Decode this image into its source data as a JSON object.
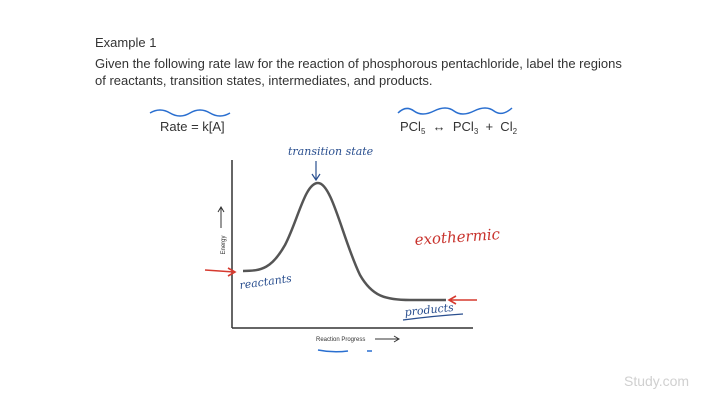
{
  "example": {
    "title": "Example 1",
    "prompt_lines": [
      "Given the following rate law for the reaction of phosphorous pentachloride, label the regions",
      "of reactants, transition states, intermediates, and products."
    ]
  },
  "rate_law": "Rate = k[A]",
  "reaction": {
    "parts": [
      "PCl",
      "5",
      "  ↔  PCl",
      "3",
      "  +  Cl",
      "2"
    ]
  },
  "diagram": {
    "y_axis_label": "Energy",
    "x_axis_label": "Reaction Progress",
    "annotations": {
      "transition_state": "transition state",
      "exothermic": "exothermic",
      "reactants": "reactants",
      "products": "products"
    }
  },
  "watermark": "Study.com"
}
